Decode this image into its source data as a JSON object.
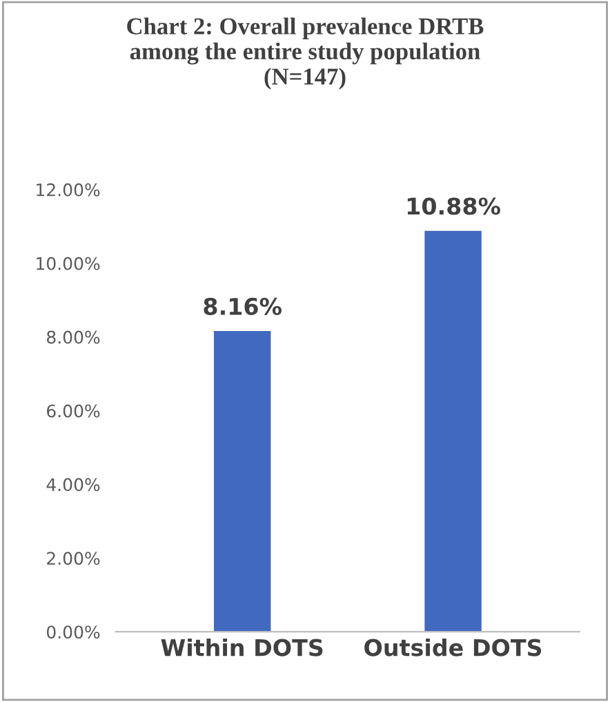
{
  "chart_data": {
    "type": "bar",
    "title": "Chart 2: Overall prevalence DRTB\namong the entire study population\n(N=147)",
    "categories": [
      "Within DOTS",
      "Outside DOTS"
    ],
    "values": [
      8.16,
      10.88
    ],
    "value_labels": [
      "8.16%",
      "10.88%"
    ],
    "color": "#4169c0",
    "ylim": [
      0,
      12
    ],
    "yticks": [
      {
        "value": 0,
        "label": "0.00%"
      },
      {
        "value": 2,
        "label": "2.00%"
      },
      {
        "value": 4,
        "label": "4.00%"
      },
      {
        "value": 6,
        "label": "6.00%"
      },
      {
        "value": 8,
        "label": "8.00%"
      },
      {
        "value": 10,
        "label": "10.00%"
      },
      {
        "value": 12,
        "label": "12.00%"
      }
    ],
    "grid": false
  }
}
